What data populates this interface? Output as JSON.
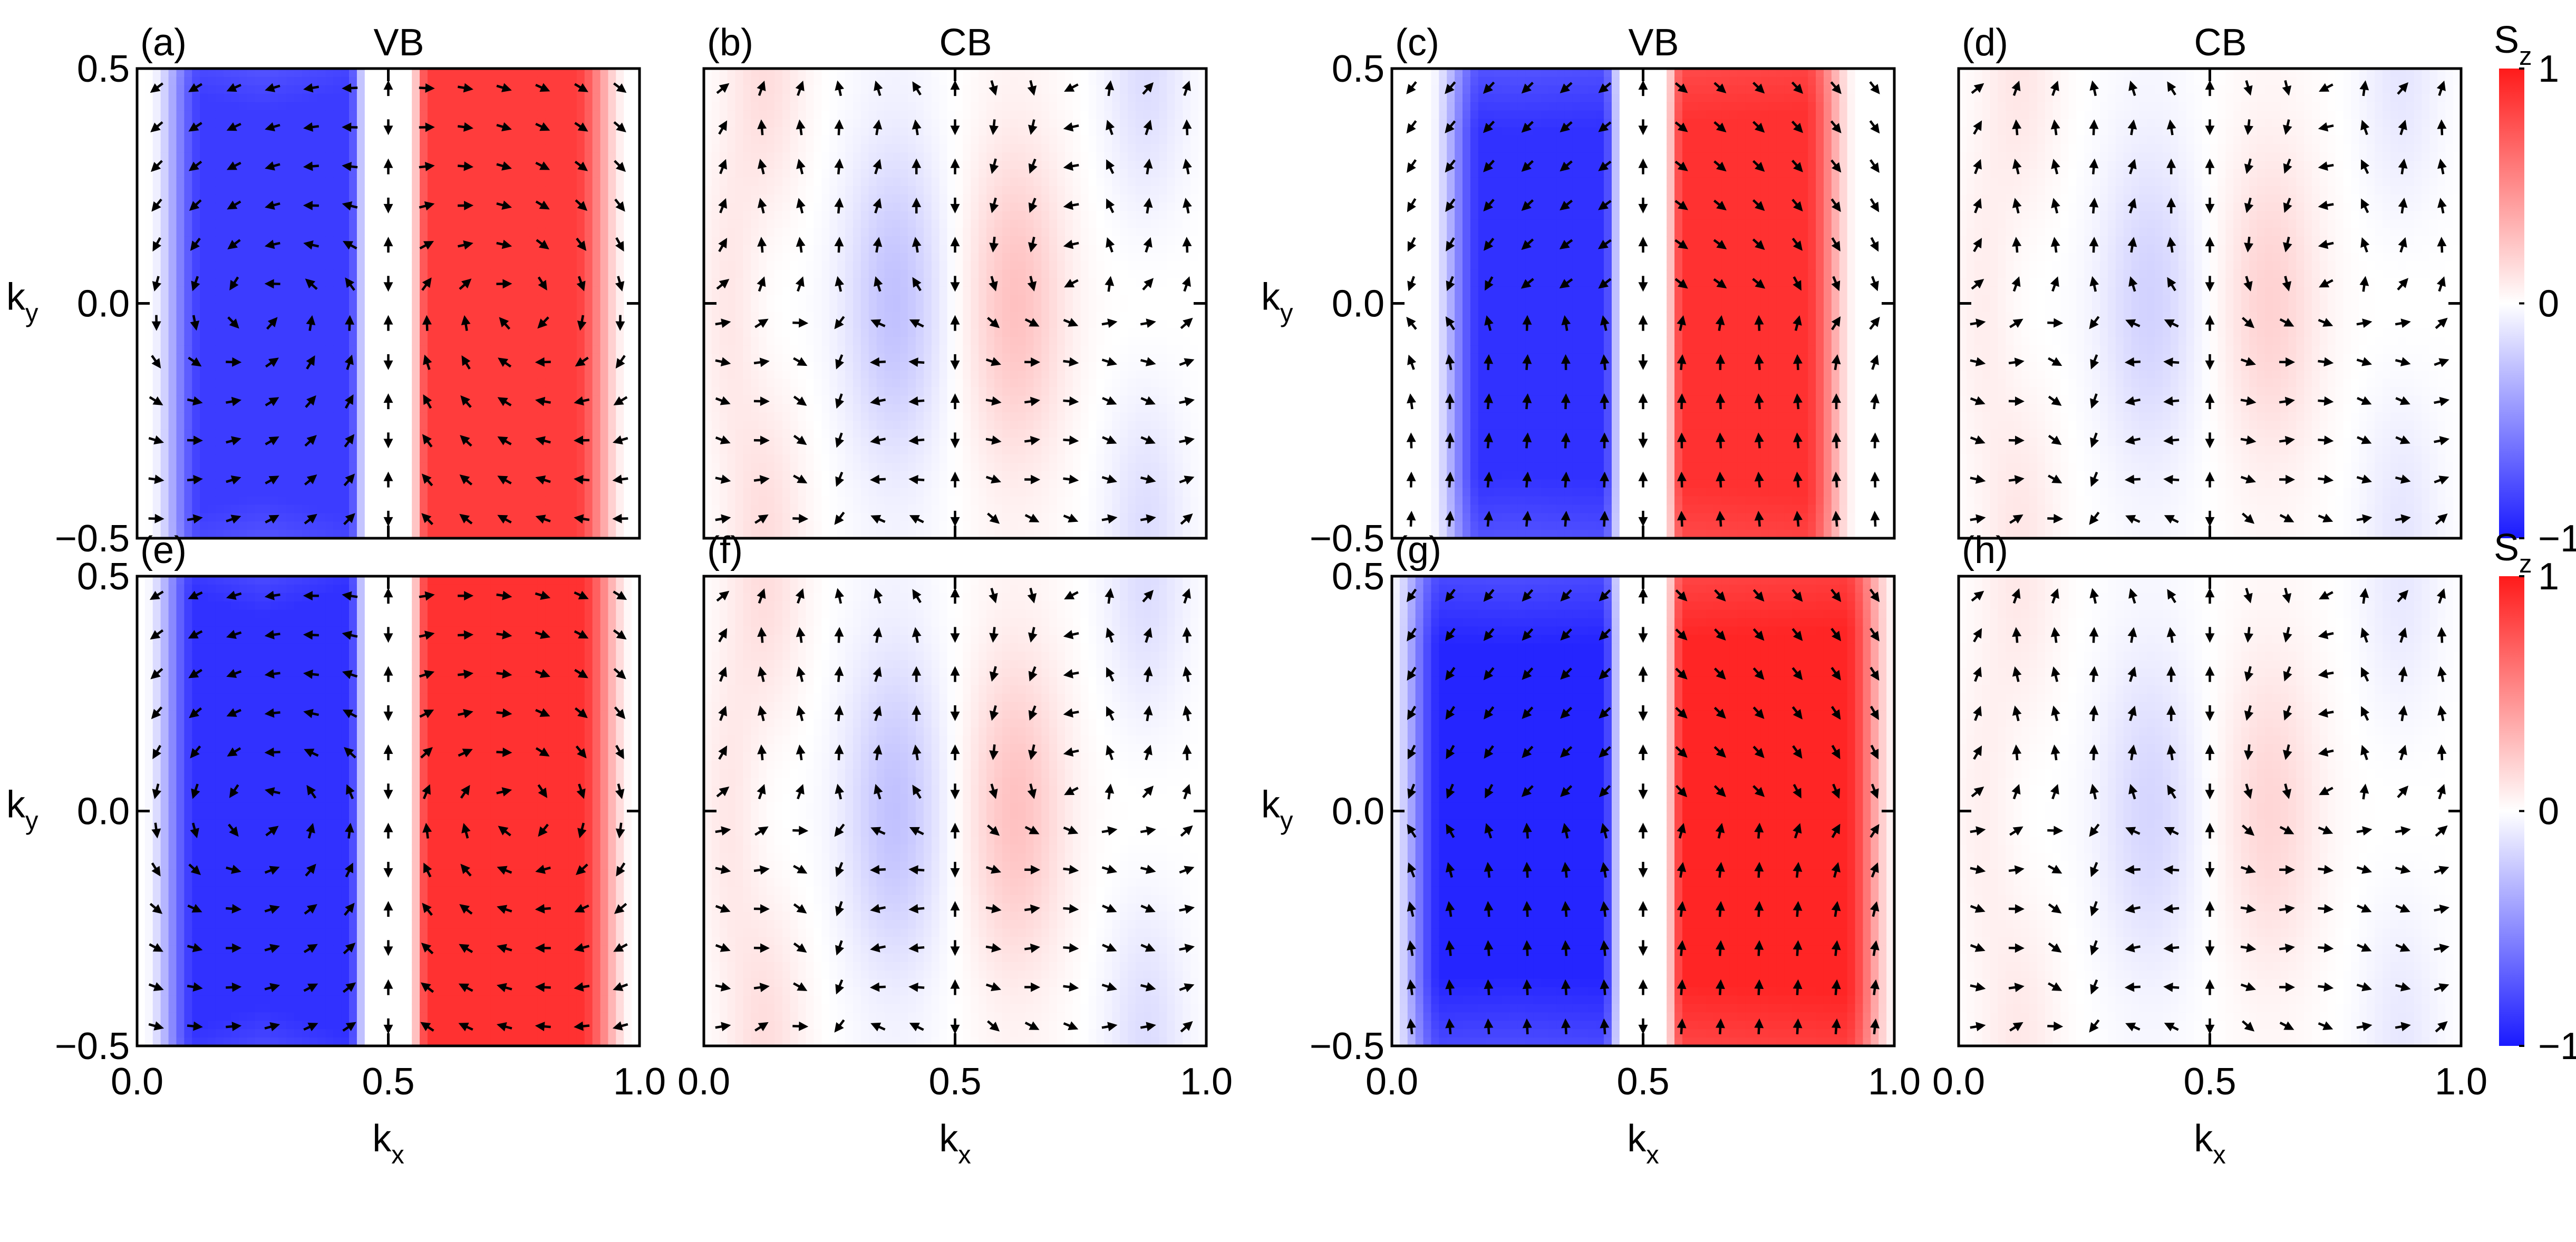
{
  "chart_data": [
    {
      "type": "heatmap",
      "panel": "(a)",
      "title": "VB",
      "kind": "spin-texture",
      "row": "top",
      "xlabel": "k",
      "xlabel_sub": "x",
      "ylabel": "k",
      "ylabel_sub": "y",
      "xlim": [
        0.0,
        1.0
      ],
      "ylim": [
        -0.5,
        0.5
      ],
      "x_ticks": [
        "0.0",
        "0.5",
        "1.0"
      ],
      "y_ticks": [
        "0.5",
        "0.0",
        "−0.5"
      ],
      "sz_peak": 0.85,
      "sz_core": [
        0.07,
        0.93
      ],
      "gap": 0.05,
      "vortex_strength": 0.6,
      "quiver_grid": [
        13,
        12
      ]
    },
    {
      "type": "heatmap",
      "panel": "(b)",
      "title": "CB",
      "kind": "conduction",
      "row": "top",
      "xlabel": "k",
      "xlabel_sub": "x",
      "ylabel": "k",
      "ylabel_sub": "y",
      "xlim": [
        0.0,
        1.0
      ],
      "ylim": [
        -0.5,
        0.5
      ],
      "x_ticks": [
        "0.0",
        "0.5",
        "1.0"
      ],
      "y_ticks": [
        "0.5",
        "0.0",
        "−0.5"
      ],
      "sz_peak": 0.3,
      "quiver_grid": [
        13,
        12
      ]
    },
    {
      "type": "heatmap",
      "panel": "(c)",
      "title": "VB",
      "kind": "spin-texture",
      "row": "top",
      "xlabel": "k",
      "xlabel_sub": "x",
      "ylabel": "k",
      "ylabel_sub": "y",
      "xlim": [
        0.0,
        1.0
      ],
      "ylim": [
        -0.5,
        0.5
      ],
      "x_ticks": [
        "0.0",
        "0.5",
        "1.0"
      ],
      "y_ticks": [
        "0.5",
        "0.0",
        "−0.5"
      ],
      "sz_peak": 0.9,
      "sz_core": [
        0.12,
        0.88
      ],
      "gap": 0.05,
      "vortex_strength": 0.25,
      "quiver_grid": [
        13,
        12
      ]
    },
    {
      "type": "heatmap",
      "panel": "(d)",
      "title": "CB",
      "kind": "conduction",
      "row": "top",
      "xlabel": "k",
      "xlabel_sub": "x",
      "ylabel": "k",
      "ylabel_sub": "y",
      "xlim": [
        0.0,
        1.0
      ],
      "ylim": [
        -0.5,
        0.5
      ],
      "x_ticks": [
        "0.0",
        "0.5",
        "1.0"
      ],
      "y_ticks": [
        "0.5",
        "0.0",
        "−0.5"
      ],
      "sz_peak": 0.22,
      "quiver_grid": [
        13,
        12
      ]
    },
    {
      "type": "heatmap",
      "panel": "(e)",
      "title": "",
      "kind": "spin-texture",
      "row": "bottom",
      "xlabel": "k",
      "xlabel_sub": "x",
      "ylabel": "k",
      "ylabel_sub": "y",
      "xlim": [
        0.0,
        1.0
      ],
      "ylim": [
        -0.5,
        0.5
      ],
      "x_ticks": [
        "0.0",
        "0.5",
        "1.0"
      ],
      "y_ticks": [
        "0.5",
        "0.0",
        "−0.5"
      ],
      "sz_peak": 0.9,
      "sz_core": [
        0.06,
        0.94
      ],
      "gap": 0.05,
      "vortex_strength": 0.75,
      "quiver_grid": [
        13,
        12
      ]
    },
    {
      "type": "heatmap",
      "panel": "(f)",
      "title": "",
      "kind": "conduction",
      "row": "bottom",
      "xlabel": "k",
      "xlabel_sub": "x",
      "ylabel": "k",
      "ylabel_sub": "y",
      "xlim": [
        0.0,
        1.0
      ],
      "ylim": [
        -0.5,
        0.5
      ],
      "x_ticks": [
        "0.0",
        "0.5",
        "1.0"
      ],
      "y_ticks": [
        "0.5",
        "0.0",
        "−0.5"
      ],
      "sz_peak": 0.3,
      "quiver_grid": [
        13,
        12
      ]
    },
    {
      "type": "heatmap",
      "panel": "(g)",
      "title": "",
      "kind": "spin-texture",
      "row": "bottom",
      "xlabel": "k",
      "xlabel_sub": "x",
      "ylabel": "k",
      "ylabel_sub": "y",
      "xlim": [
        0.0,
        1.0
      ],
      "ylim": [
        -0.5,
        0.5
      ],
      "x_ticks": [
        "0.0",
        "0.5",
        "1.0"
      ],
      "y_ticks": [
        "0.5",
        "0.0",
        "−0.5"
      ],
      "sz_peak": 0.95,
      "sz_core": [
        0.04,
        0.96
      ],
      "gap": 0.05,
      "vortex_strength": 0.2,
      "quiver_grid": [
        13,
        12
      ]
    },
    {
      "type": "heatmap",
      "panel": "(h)",
      "title": "",
      "kind": "conduction",
      "row": "bottom",
      "xlabel": "k",
      "xlabel_sub": "x",
      "ylabel": "k",
      "ylabel_sub": "y",
      "xlim": [
        0.0,
        1.0
      ],
      "ylim": [
        -0.5,
        0.5
      ],
      "x_ticks": [
        "0.0",
        "0.5",
        "1.0"
      ],
      "y_ticks": [
        "0.5",
        "0.0",
        "−0.5"
      ],
      "sz_peak": 0.2,
      "quiver_grid": [
        13,
        12
      ]
    }
  ],
  "colorbars": [
    {
      "label": "S",
      "label_sub": "z",
      "ticks": [
        "1",
        "0",
        "−1"
      ],
      "range": [
        -1,
        1
      ]
    },
    {
      "label": "S",
      "label_sub": "z",
      "ticks": [
        "1",
        "0",
        "−1"
      ],
      "range": [
        -1,
        1
      ]
    }
  ],
  "colormap": {
    "negative": "#1a1aff",
    "zero": "#ffffff",
    "positive": "#ff1a1a"
  }
}
